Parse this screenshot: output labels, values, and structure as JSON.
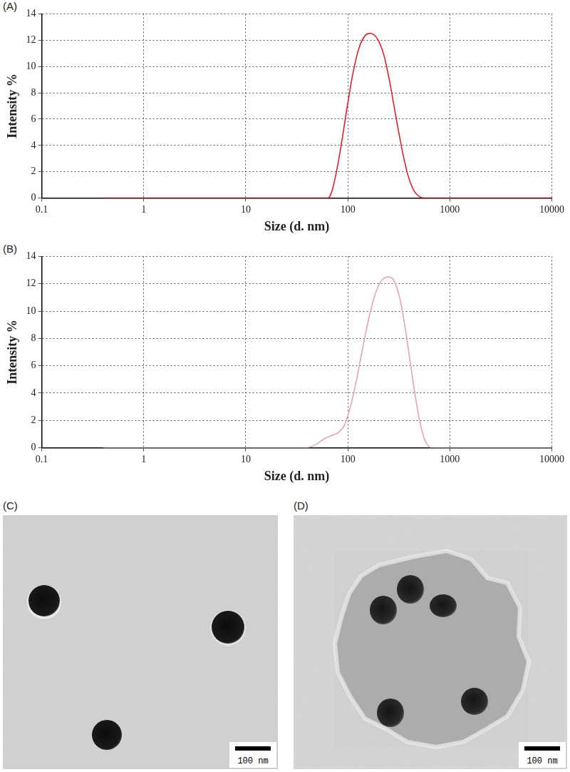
{
  "chart_data": [
    {
      "type": "line",
      "title": "(A)",
      "xlabel": "Size (d. nm)",
      "ylabel": "Intensity %",
      "x": [
        0.4,
        1,
        10,
        50,
        65,
        75,
        86,
        99,
        113,
        130,
        150,
        170,
        195,
        225,
        258,
        296,
        340,
        390,
        450,
        520,
        580,
        1000,
        10000
      ],
      "values": [
        0,
        0,
        0,
        0,
        0,
        1.5,
        4.0,
        7.0,
        9.6,
        11.5,
        12.4,
        12.5,
        12.1,
        10.9,
        8.8,
        6.2,
        3.7,
        1.7,
        0.5,
        0.05,
        0,
        0,
        0
      ],
      "color": "#e0202a",
      "log": "x",
      "grid": true,
      "xlim": [
        0.1,
        10000
      ],
      "xticks": [
        0.1,
        1,
        10,
        100,
        1000,
        10000
      ],
      "ylim": [
        0,
        14
      ],
      "yticks": [
        0,
        2,
        4,
        6,
        8,
        10,
        12,
        14
      ]
    },
    {
      "type": "line",
      "title": "(B)",
      "xlabel": "Size (d. nm)",
      "ylabel": "Intensity %",
      "x": [
        0.4,
        1,
        10,
        40,
        50,
        60,
        70,
        80,
        92,
        106,
        122,
        140,
        161,
        185,
        212,
        244,
        280,
        322,
        370,
        425,
        488,
        560,
        645,
        740,
        1000,
        10000
      ],
      "values": [
        0,
        0,
        0,
        0,
        0.3,
        0.7,
        0.9,
        1.1,
        1.6,
        3.0,
        5.0,
        7.3,
        9.5,
        11.2,
        12.2,
        12.5,
        12.3,
        11.0,
        8.5,
        5.4,
        2.6,
        0.7,
        0,
        0,
        0,
        0
      ],
      "color": "#e8a4ac",
      "log": "x",
      "grid": true,
      "xlim": [
        0.1,
        10000
      ],
      "xticks": [
        0.1,
        1,
        10,
        100,
        1000,
        10000
      ],
      "ylim": [
        0,
        14
      ],
      "yticks": [
        0,
        2,
        4,
        6,
        8,
        10,
        12,
        14
      ]
    }
  ],
  "images": [
    {
      "label": "(C)",
      "scale_bar": "100 nm"
    },
    {
      "label": "(D)",
      "scale_bar": "100 nm"
    }
  ]
}
